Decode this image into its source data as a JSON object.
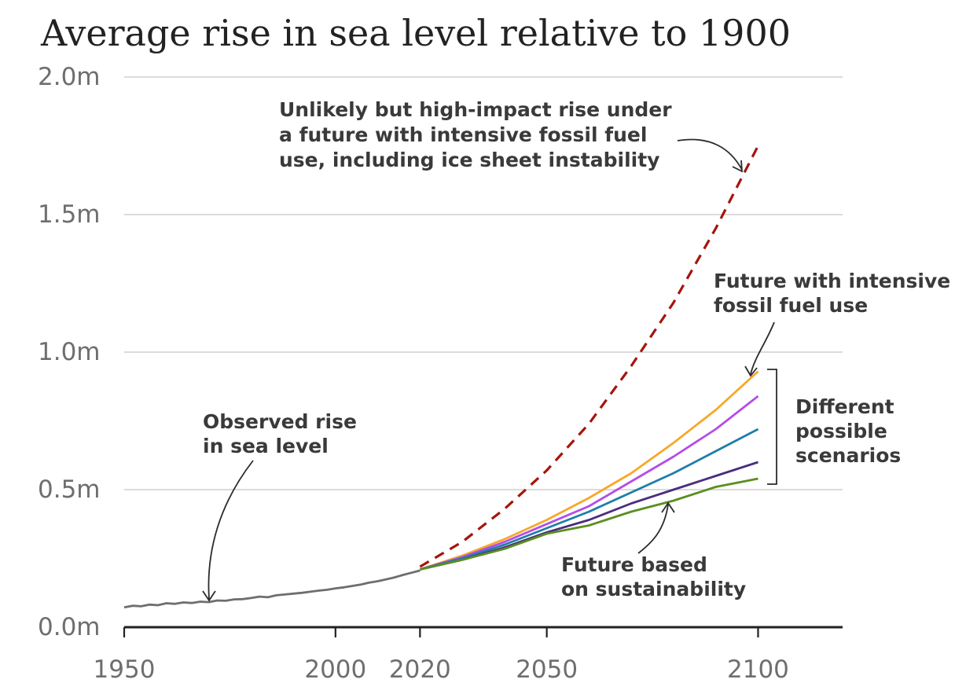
{
  "chart_data": {
    "type": "line",
    "title": "Average rise in sea level relative to 1900",
    "xlabel": "",
    "ylabel": "",
    "xlim": [
      1950,
      2120
    ],
    "ylim": [
      0,
      2.0
    ],
    "x_ticks": [
      1950,
      2000,
      2020,
      2050,
      2100
    ],
    "y_ticks": [
      {
        "value": 0.0,
        "label": "0.0m"
      },
      {
        "value": 0.5,
        "label": "0.5m"
      },
      {
        "value": 1.0,
        "label": "1.0m"
      },
      {
        "value": 1.5,
        "label": "1.5m"
      },
      {
        "value": 2.0,
        "label": "2.0m"
      }
    ],
    "grid": true,
    "series": [
      {
        "key": "observed",
        "color": "#6e6e6e",
        "style": "solid",
        "x": [
          1950,
          1952,
          1954,
          1956,
          1958,
          1960,
          1962,
          1964,
          1966,
          1968,
          1970,
          1972,
          1974,
          1976,
          1978,
          1980,
          1982,
          1984,
          1986,
          1988,
          1990,
          1992,
          1994,
          1996,
          1998,
          2000,
          2002,
          2004,
          2006,
          2008,
          2010,
          2012,
          2014,
          2016,
          2018,
          2020
        ],
        "values": [
          0.072,
          0.078,
          0.076,
          0.082,
          0.08,
          0.087,
          0.085,
          0.09,
          0.088,
          0.093,
          0.091,
          0.097,
          0.096,
          0.101,
          0.102,
          0.106,
          0.111,
          0.109,
          0.116,
          0.119,
          0.122,
          0.125,
          0.129,
          0.133,
          0.136,
          0.141,
          0.145,
          0.15,
          0.155,
          0.162,
          0.167,
          0.174,
          0.181,
          0.19,
          0.198,
          0.206
        ]
      },
      {
        "key": "low-likelihood-high-impact",
        "color": "#a5150c",
        "style": "dashed",
        "x": [
          2020,
          2030,
          2040,
          2050,
          2060,
          2070,
          2080,
          2090,
          2100
        ],
        "values": [
          0.22,
          0.31,
          0.43,
          0.57,
          0.74,
          0.95,
          1.18,
          1.45,
          1.75
        ]
      },
      {
        "key": "intensive-fossil-fuel",
        "color": "#f7a829",
        "style": "solid",
        "x": [
          2020,
          2030,
          2040,
          2050,
          2060,
          2070,
          2080,
          2090,
          2100
        ],
        "values": [
          0.21,
          0.26,
          0.32,
          0.39,
          0.47,
          0.56,
          0.67,
          0.79,
          0.93
        ]
      },
      {
        "key": "scenario-purple",
        "color": "#b54ce8",
        "style": "solid",
        "x": [
          2020,
          2030,
          2040,
          2050,
          2060,
          2070,
          2080,
          2090,
          2100
        ],
        "values": [
          0.21,
          0.255,
          0.31,
          0.375,
          0.44,
          0.53,
          0.62,
          0.72,
          0.84
        ]
      },
      {
        "key": "scenario-teal",
        "color": "#1f7ea8",
        "style": "solid",
        "x": [
          2020,
          2030,
          2040,
          2050,
          2060,
          2070,
          2080,
          2090,
          2100
        ],
        "values": [
          0.21,
          0.25,
          0.3,
          0.36,
          0.42,
          0.49,
          0.56,
          0.64,
          0.72
        ]
      },
      {
        "key": "scenario-dark-purple",
        "color": "#4b2d7f",
        "style": "solid",
        "x": [
          2020,
          2030,
          2040,
          2050,
          2060,
          2070,
          2080,
          2090,
          2100
        ],
        "values": [
          0.21,
          0.245,
          0.29,
          0.345,
          0.39,
          0.45,
          0.5,
          0.55,
          0.6
        ]
      },
      {
        "key": "sustainability",
        "color": "#5a8f1e",
        "style": "solid",
        "x": [
          2020,
          2030,
          2040,
          2050,
          2060,
          2070,
          2080,
          2090,
          2100
        ],
        "values": [
          0.21,
          0.245,
          0.285,
          0.34,
          0.37,
          0.42,
          0.46,
          0.51,
          0.54
        ]
      }
    ],
    "annotations": {
      "high_impact": [
        "Unlikely but high-impact rise under",
        "a future with intensive fossil fuel",
        "use, including ice sheet instability"
      ],
      "intensive": [
        "Future with intensive",
        "fossil fuel use"
      ],
      "scenarios": [
        "Different",
        "possible",
        "scenarios"
      ],
      "observed": [
        "Observed rise",
        "in sea level"
      ],
      "sustainability": [
        "Future based",
        "on sustainability"
      ]
    }
  }
}
